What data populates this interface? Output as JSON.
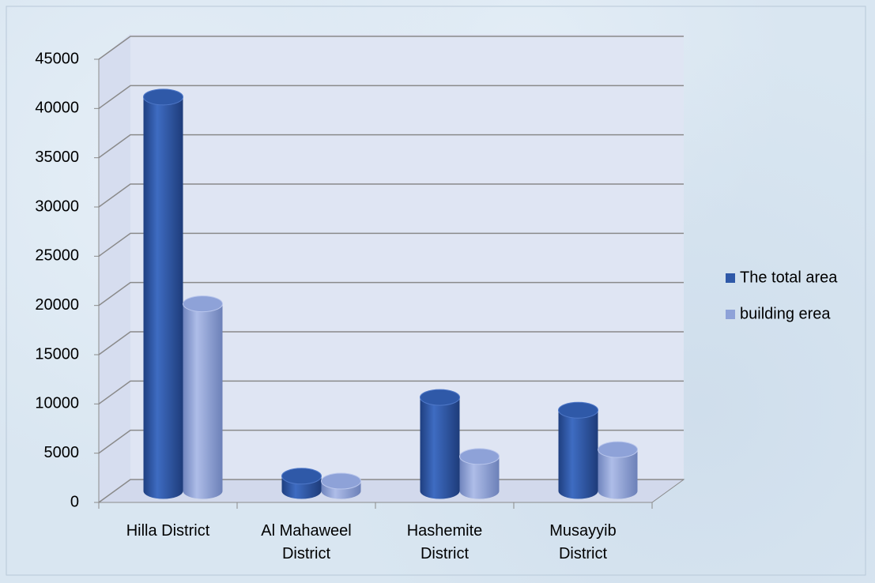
{
  "chart_data": {
    "type": "bar3d",
    "categories": [
      "Hilla District",
      "Al Mahaweel District",
      "Hashemite District",
      "Musayyib District"
    ],
    "series": [
      {
        "name": "The total area",
        "color": "#2f59a8",
        "values": [
          40000,
          1500,
          9500,
          8200
        ]
      },
      {
        "name": "building erea",
        "color": "#8ea2d8",
        "values": [
          19000,
          1000,
          3500,
          4200
        ]
      }
    ],
    "ylim": [
      0,
      45000
    ],
    "yticks": [
      0,
      5000,
      10000,
      15000,
      20000,
      25000,
      30000,
      35000,
      40000,
      45000
    ],
    "grid": true,
    "legend": "right"
  }
}
